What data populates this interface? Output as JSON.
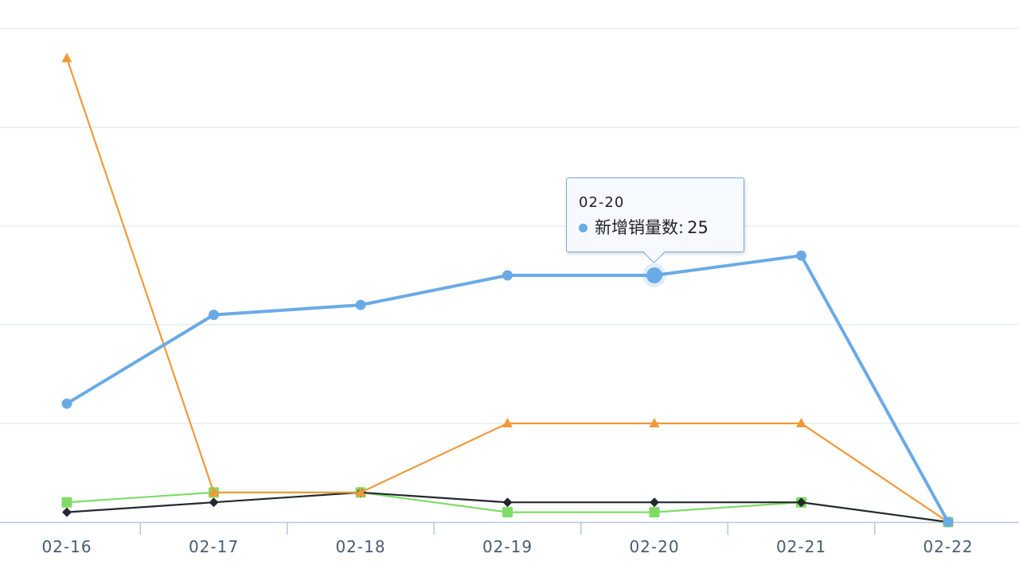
{
  "chart_data": {
    "type": "line",
    "categories": [
      "02-16",
      "02-17",
      "02-18",
      "02-19",
      "02-20",
      "02-21",
      "02-22"
    ],
    "ylim": [
      0,
      50
    ],
    "grid": true,
    "series": [
      {
        "name": "新增销量数",
        "color": "#6aaae6",
        "marker": "circle",
        "values": [
          12,
          21,
          22,
          25,
          25,
          27,
          0
        ]
      },
      {
        "name": "",
        "color": "#f0993a",
        "marker": "triangle",
        "values": [
          47,
          3,
          3,
          10,
          10,
          10,
          0
        ]
      },
      {
        "name": "",
        "color": "#232830",
        "marker": "diamond",
        "values": [
          1,
          2,
          3,
          2,
          2,
          2,
          0
        ]
      },
      {
        "name": "",
        "color": "#7ddc64",
        "marker": "square",
        "values": [
          2,
          3,
          3,
          1,
          1,
          2,
          0
        ]
      }
    ],
    "tooltip": {
      "category": "02-20",
      "series_name": "新增销量数",
      "separator": ":",
      "value": 25,
      "color": "#6aaae6"
    }
  }
}
